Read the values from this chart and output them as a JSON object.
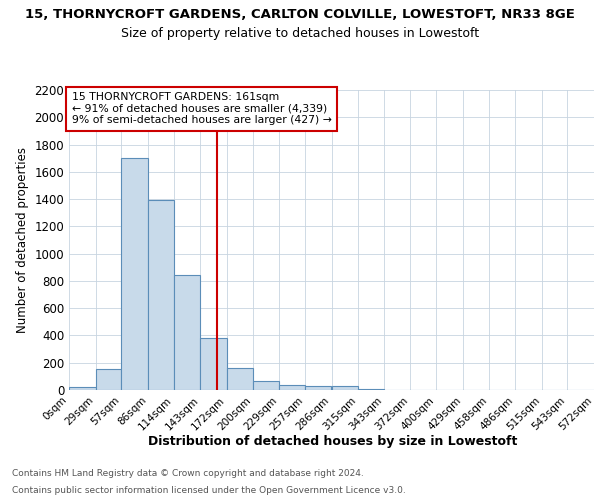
{
  "title1": "15, THORNYCROFT GARDENS, CARLTON COLVILLE, LOWESTOFT, NR33 8GE",
  "title2": "Size of property relative to detached houses in Lowestoft",
  "xlabel": "Distribution of detached houses by size in Lowestoft",
  "ylabel": "Number of detached properties",
  "bin_edges": [
    0,
    29,
    57,
    86,
    114,
    143,
    172,
    200,
    229,
    257,
    286,
    315,
    343,
    372,
    400,
    429,
    458,
    486,
    515,
    543,
    572
  ],
  "bin_labels": [
    "0sqm",
    "29sqm",
    "57sqm",
    "86sqm",
    "114sqm",
    "143sqm",
    "172sqm",
    "200sqm",
    "229sqm",
    "257sqm",
    "286sqm",
    "315sqm",
    "343sqm",
    "372sqm",
    "400sqm",
    "429sqm",
    "458sqm",
    "486sqm",
    "515sqm",
    "543sqm",
    "572sqm"
  ],
  "bar_heights": [
    20,
    155,
    1700,
    1390,
    840,
    385,
    160,
    65,
    40,
    28,
    28,
    5,
    0,
    0,
    0,
    0,
    0,
    0,
    0,
    0
  ],
  "bar_color": "#c8daea",
  "bar_edge_color": "#5b8db8",
  "property_line_x": 161,
  "annotation_line": "15 THORNYCROFT GARDENS: 161sqm",
  "annotation_smaller": "← 91% of detached houses are smaller (4,339)",
  "annotation_larger": "9% of semi-detached houses are larger (427) →",
  "vline_color": "#cc0000",
  "annotation_box_color": "#cc0000",
  "ylim": [
    0,
    2200
  ],
  "yticks": [
    0,
    200,
    400,
    600,
    800,
    1000,
    1200,
    1400,
    1600,
    1800,
    2000,
    2200
  ],
  "footer1": "Contains HM Land Registry data © Crown copyright and database right 2024.",
  "footer2": "Contains public sector information licensed under the Open Government Licence v3.0.",
  "bg_color": "#ffffff",
  "plot_bg_color": "#ffffff",
  "grid_color": "#c8d4e0"
}
